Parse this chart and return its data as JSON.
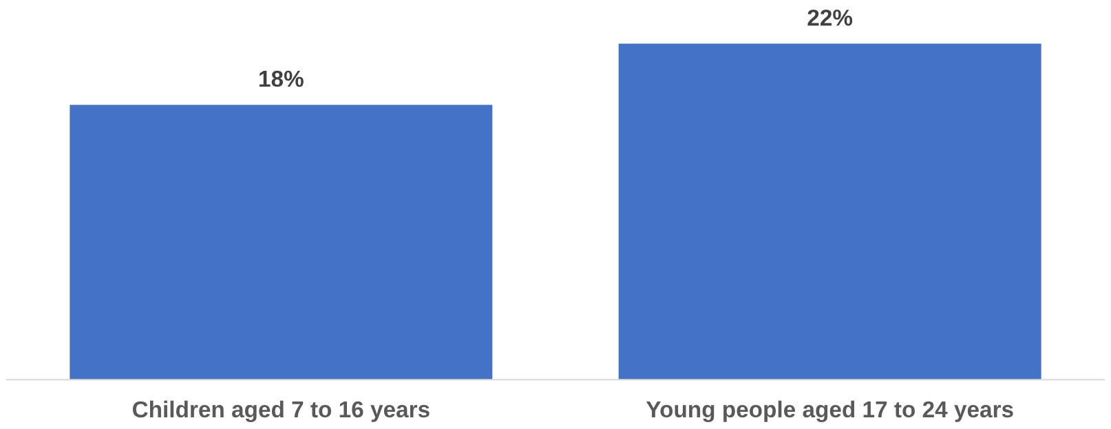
{
  "chart_data": {
    "type": "bar",
    "categories": [
      "Children aged 7 to 16 years",
      "Young people aged 17 to 24 years"
    ],
    "values": [
      18,
      22
    ],
    "value_labels": [
      "18%",
      "22%"
    ],
    "color": "#4472c4",
    "grid": false,
    "legend": false
  }
}
